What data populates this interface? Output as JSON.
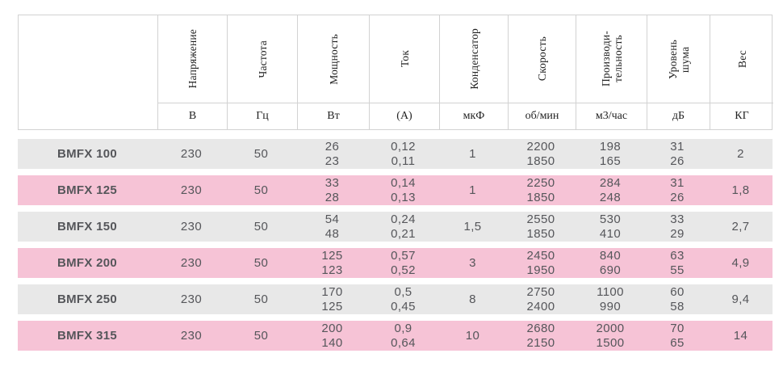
{
  "table": {
    "columns": [
      {
        "label": "Напряжение",
        "unit": "В"
      },
      {
        "label": "Частота",
        "unit": "Гц"
      },
      {
        "label": "Мощность",
        "unit": "Вт"
      },
      {
        "label": "Ток",
        "unit": "(А)"
      },
      {
        "label": "Конденсатор",
        "unit": "мкФ"
      },
      {
        "label": "Скорость",
        "unit": "об/мин"
      },
      {
        "label": "Производи-\nтельность",
        "unit": "м3/час"
      },
      {
        "label": "Уровень\nшума",
        "unit": "дБ"
      },
      {
        "label": "Вес",
        "unit": "КГ"
      }
    ],
    "rows": [
      {
        "model": "BMFX 100",
        "tone": "gray",
        "values": [
          "230",
          "50",
          "26\n23",
          "0,12\n0,11",
          "1",
          "2200\n1850",
          "198\n165",
          "31\n26",
          "2"
        ]
      },
      {
        "model": "BMFX 125",
        "tone": "pink",
        "values": [
          "230",
          "50",
          "33\n28",
          "0,14\n0,13",
          "1",
          "2250\n1850",
          "284\n248",
          "31\n26",
          "1,8"
        ]
      },
      {
        "model": "BMFX 150",
        "tone": "gray",
        "values": [
          "230",
          "50",
          "54\n48",
          "0,24\n0,21",
          "1,5",
          "2550\n1850",
          "530\n410",
          "33\n29",
          "2,7"
        ]
      },
      {
        "model": "BMFX 200",
        "tone": "pink",
        "values": [
          "230",
          "50",
          "125\n123",
          "0,57\n0,52",
          "3",
          "2450\n1950",
          "840\n690",
          "63\n55",
          "4,9"
        ]
      },
      {
        "model": "BMFX 250",
        "tone": "gray",
        "values": [
          "230",
          "50",
          "170\n125",
          "0,5\n0,45",
          "8",
          "2750\n2400",
          "1100\n990",
          "60\n58",
          "9,4"
        ]
      },
      {
        "model": "BMFX 315",
        "tone": "pink",
        "values": [
          "230",
          "50",
          "200\n140",
          "0,9\n0,64",
          "10",
          "2680\n2150",
          "2000\n1500",
          "70\n65",
          "14"
        ]
      }
    ],
    "colors": {
      "row_gray": "#e8e8e8",
      "row_pink": "#f6c3d6",
      "border": "#d2d2d2",
      "text": "#55565a"
    }
  }
}
